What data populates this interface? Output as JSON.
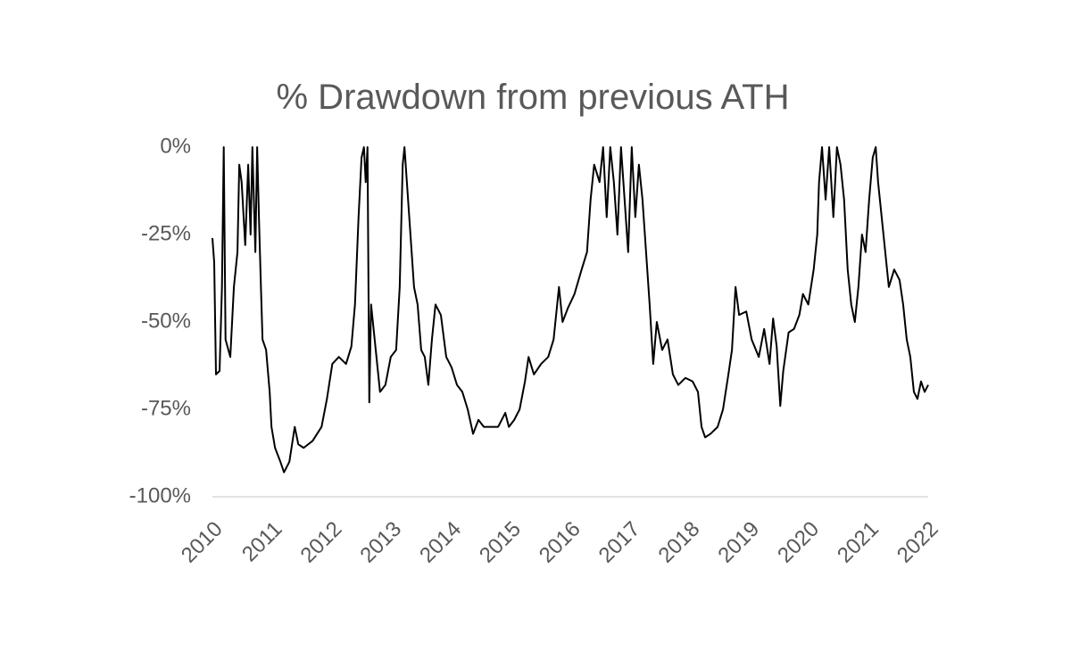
{
  "chart_data": {
    "type": "line",
    "title": "% Drawdown from previous ATH",
    "color": "#000000",
    "x": [
      2010.0,
      2010.03,
      2010.06,
      2010.12,
      2010.16,
      2010.19,
      2010.22,
      2010.3,
      2010.36,
      2010.42,
      2010.45,
      2010.49,
      2010.55,
      2010.6,
      2010.64,
      2010.67,
      2010.72,
      2010.75,
      2010.78,
      2010.81,
      2010.84,
      2010.9,
      2010.96,
      2010.99,
      2011.05,
      2011.14,
      2011.2,
      2011.29,
      2011.38,
      2011.44,
      2011.53,
      2011.68,
      2011.83,
      2011.92,
      2012.01,
      2012.12,
      2012.24,
      2012.33,
      2012.39,
      2012.45,
      2012.5,
      2012.54,
      2012.57,
      2012.6,
      2012.63,
      2012.66,
      2012.72,
      2012.81,
      2012.9,
      2012.99,
      2013.08,
      2013.14,
      2013.19,
      2013.22,
      2013.26,
      2013.32,
      2013.38,
      2013.44,
      2013.5,
      2013.56,
      2013.62,
      2013.68,
      2013.74,
      2013.83,
      2013.92,
      2014.01,
      2014.1,
      2014.19,
      2014.28,
      2014.37,
      2014.46,
      2014.55,
      2014.67,
      2014.79,
      2014.91,
      2014.97,
      2015.06,
      2015.15,
      2015.24,
      2015.3,
      2015.39,
      2015.51,
      2015.63,
      2015.72,
      2015.78,
      2015.81,
      2015.87,
      2015.96,
      2016.07,
      2016.19,
      2016.28,
      2016.34,
      2016.4,
      2016.49,
      2016.55,
      2016.61,
      2016.67,
      2016.73,
      2016.79,
      2016.85,
      2016.91,
      2016.97,
      2017.03,
      2017.09,
      2017.15,
      2017.21,
      2017.27,
      2017.33,
      2017.39,
      2017.45,
      2017.54,
      2017.63,
      2017.72,
      2017.81,
      2017.93,
      2018.05,
      2018.14,
      2018.2,
      2018.26,
      2018.35,
      2018.47,
      2018.56,
      2018.65,
      2018.71,
      2018.77,
      2018.83,
      2018.95,
      2019.04,
      2019.16,
      2019.25,
      2019.34,
      2019.4,
      2019.46,
      2019.52,
      2019.57,
      2019.66,
      2019.75,
      2019.84,
      2019.9,
      2019.99,
      2020.08,
      2020.14,
      2020.17,
      2020.22,
      2020.28,
      2020.34,
      2020.41,
      2020.47,
      2020.53,
      2020.59,
      2020.65,
      2020.71,
      2020.77,
      2020.83,
      2020.89,
      2020.95,
      2021.01,
      2021.07,
      2021.12,
      2021.16,
      2021.22,
      2021.28,
      2021.34,
      2021.43,
      2021.52,
      2021.58,
      2021.64,
      2021.7,
      2021.76,
      2021.82,
      2021.88,
      2021.94,
      2022.0
    ],
    "values": [
      -26,
      -33,
      -65,
      -64,
      -40,
      0,
      -55,
      -60,
      -40,
      -30,
      -5,
      -10,
      -28,
      -5,
      -25,
      0,
      -30,
      0,
      -20,
      -38,
      -55,
      -58,
      -70,
      -80,
      -86,
      -90,
      -93,
      -90,
      -80,
      -85,
      -86,
      -84,
      -80,
      -72,
      -62,
      -60,
      -62,
      -57,
      -45,
      -20,
      -3,
      0,
      -10,
      0,
      -73,
      -45,
      -55,
      -70,
      -68,
      -60,
      -58,
      -40,
      -5,
      0,
      -10,
      -25,
      -40,
      -45,
      -58,
      -60,
      -68,
      -55,
      -45,
      -48,
      -60,
      -63,
      -68,
      -70,
      -75,
      -82,
      -78,
      -80,
      -80,
      -80,
      -76,
      -80,
      -78,
      -75,
      -67,
      -60,
      -65,
      -62,
      -60,
      -55,
      -45,
      -40,
      -50,
      -46,
      -42,
      -35,
      -30,
      -15,
      -5,
      -10,
      0,
      -20,
      0,
      -10,
      -25,
      0,
      -15,
      -30,
      0,
      -20,
      -5,
      -15,
      -30,
      -45,
      -62,
      -50,
      -58,
      -55,
      -65,
      -68,
      -66,
      -67,
      -70,
      -80,
      -83,
      -82,
      -80,
      -75,
      -65,
      -58,
      -40,
      -48,
      -47,
      -55,
      -60,
      -52,
      -62,
      -49,
      -57,
      -74,
      -64,
      -53,
      -52,
      -48,
      -42,
      -45,
      -35,
      -25,
      -10,
      0,
      -15,
      0,
      -20,
      0,
      -5,
      -15,
      -35,
      -45,
      -50,
      -40,
      -25,
      -30,
      -15,
      -3,
      0,
      -10,
      -20,
      -30,
      -40,
      -35,
      -38,
      -45,
      -55,
      -60,
      -70,
      -72,
      -67,
      -70,
      -68
    ],
    "xlim": [
      2010,
      2022
    ],
    "xticks": [
      2010,
      2011,
      2012,
      2013,
      2014,
      2015,
      2016,
      2017,
      2018,
      2019,
      2020,
      2021,
      2022
    ],
    "ylim": [
      -100,
      0
    ],
    "yticks": [
      {
        "value": -100,
        "label": "-100%"
      },
      {
        "value": -75,
        "label": "-75%"
      },
      {
        "value": -50,
        "label": "-50%"
      },
      {
        "value": -25,
        "label": "-25%"
      },
      {
        "value": 0,
        "label": "0%"
      }
    ]
  }
}
